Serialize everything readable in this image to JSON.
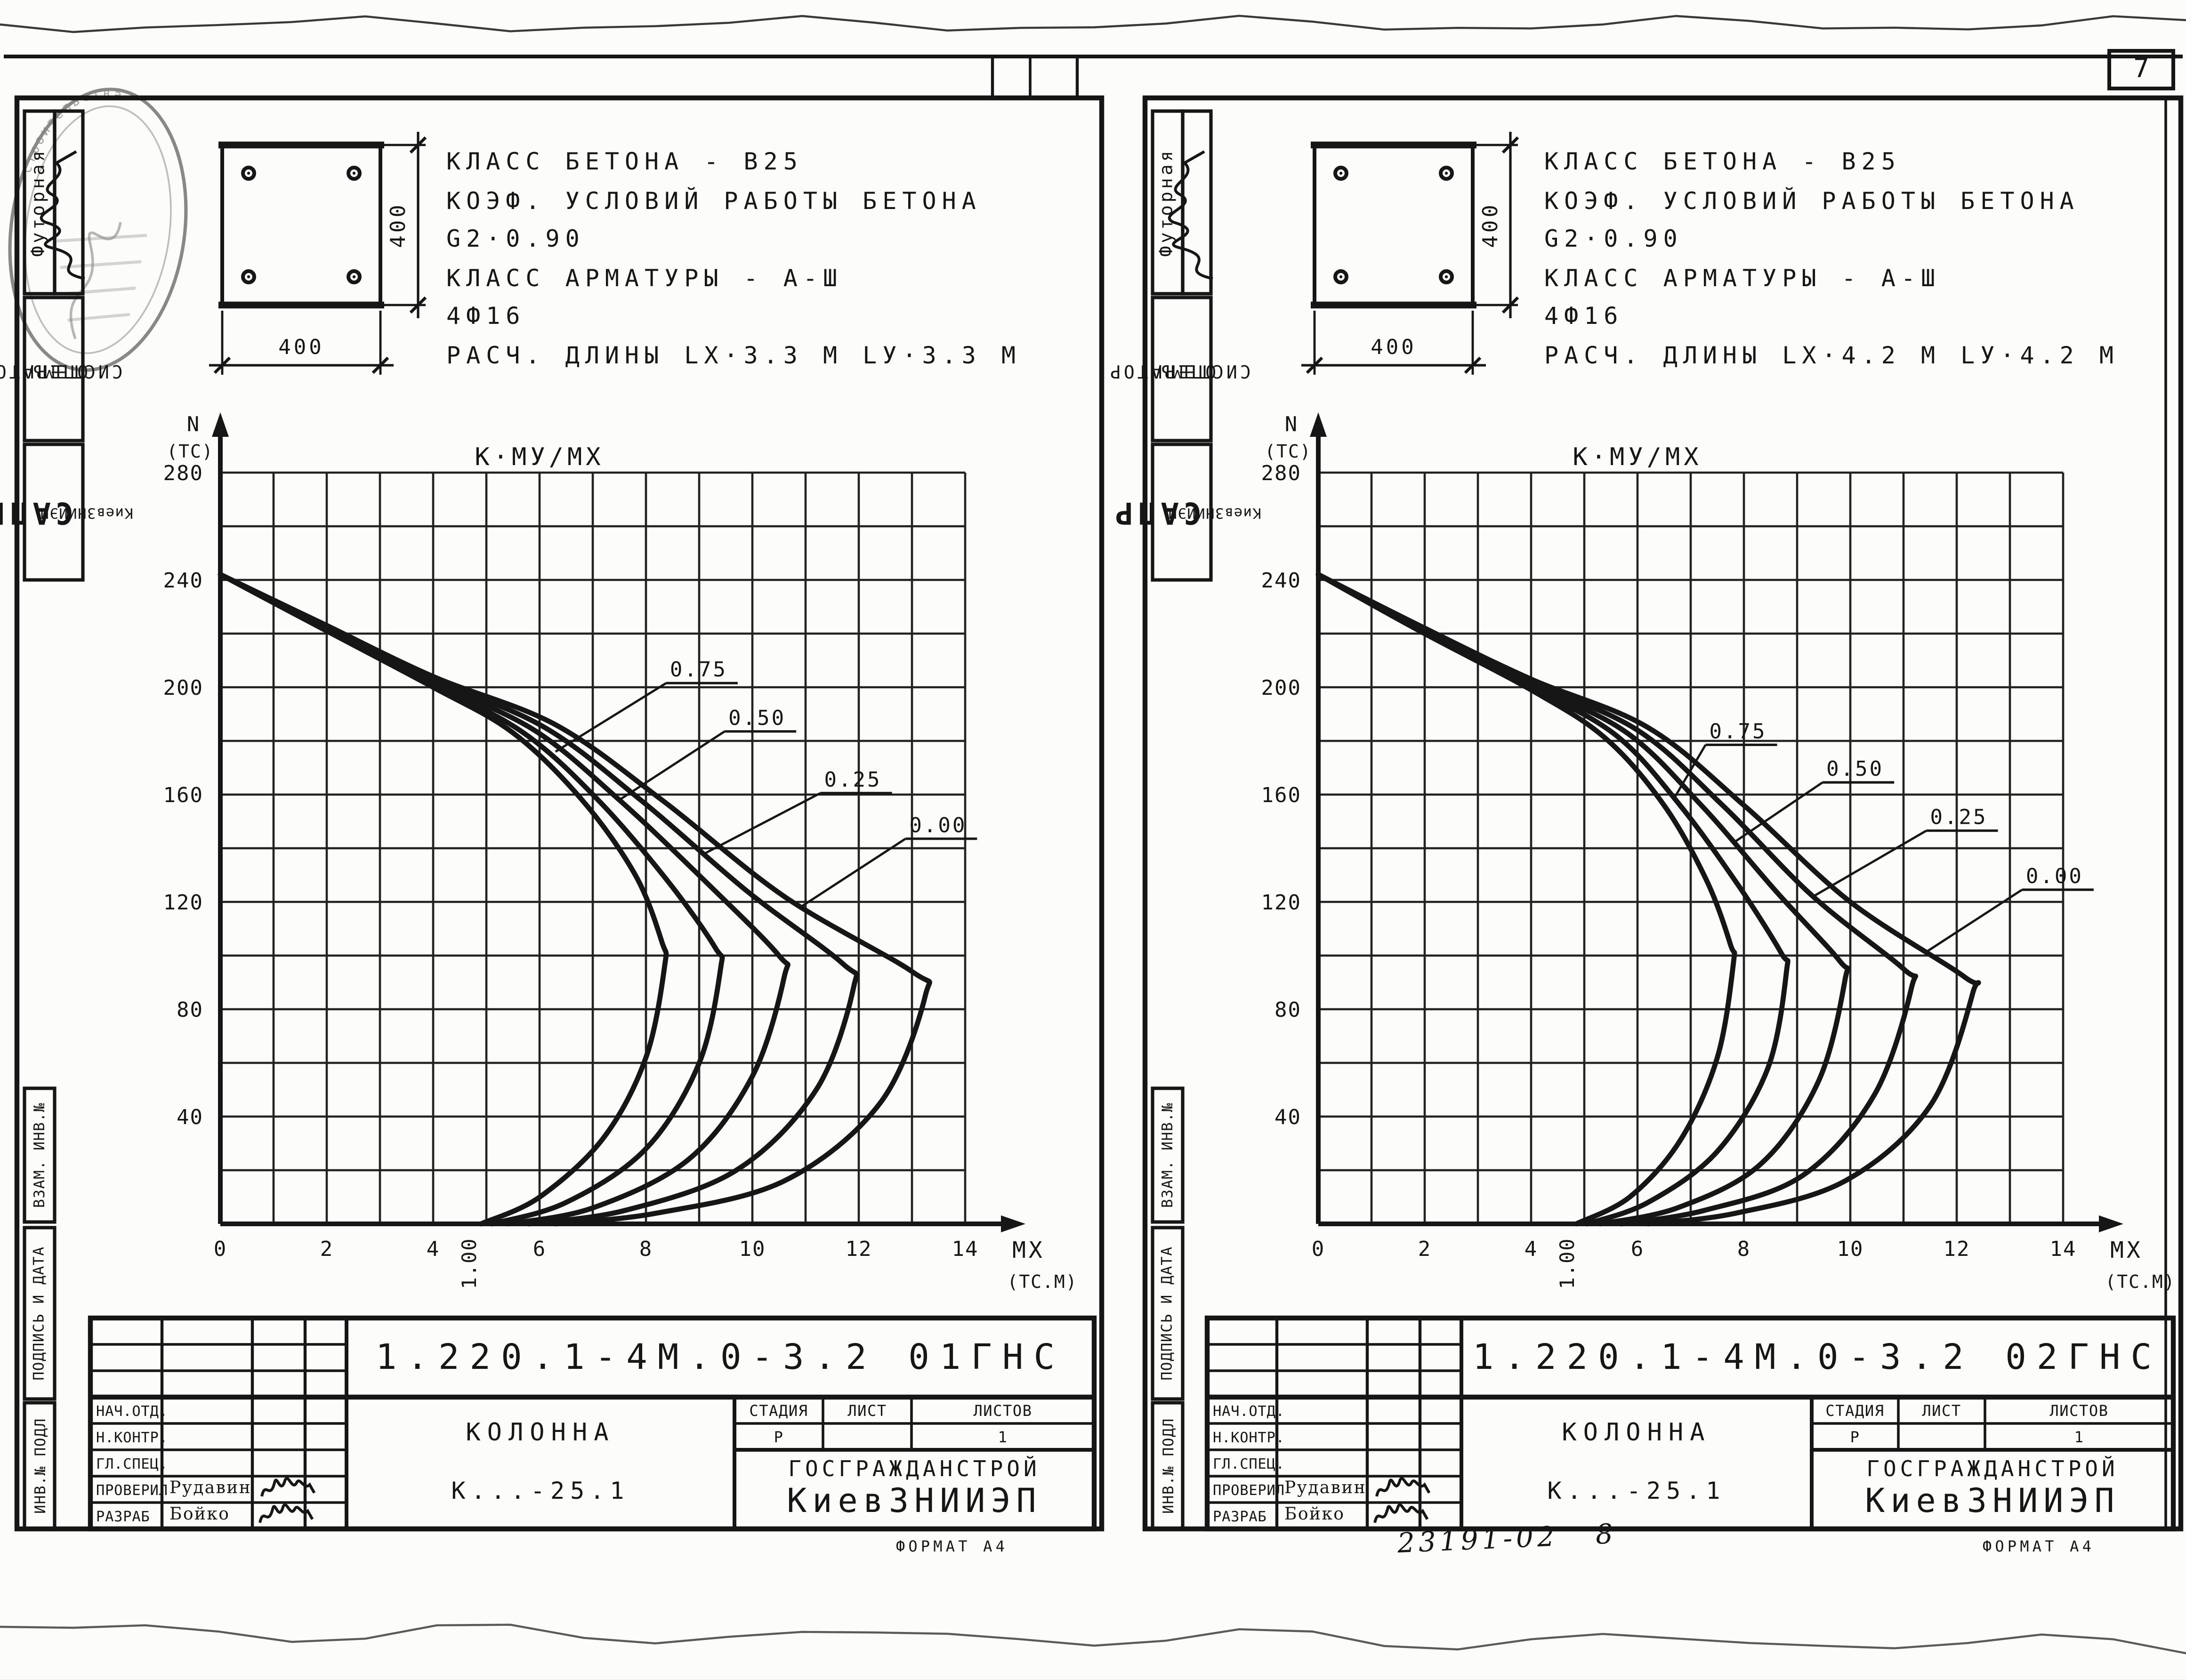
{
  "page": {
    "sheet_number": "7",
    "format_note": "ФОРМАТ А4",
    "handwritten_code": "23191-02",
    "handwritten_num": "8",
    "ink_color": "#161616",
    "paper_color": "#fcfcfa"
  },
  "stamp": {
    "arc_text": "строительства"
  },
  "sidebar": {
    "upper": [
      {
        "label": "Футорная"
      },
      {
        "label": "ОПЕРАТОР",
        "label2": "СИСТЕМЫ"
      },
      {
        "label": "САПР",
        "label2": "КиевЗНИИЭП"
      }
    ],
    "lower": [
      "ВЗАМ. ИНВ.№",
      "ПОДПИСЬ И ДАТА",
      "ИНВ.№ ПОДЛ"
    ]
  },
  "sheets": [
    {
      "side": "left",
      "specs": [
        "КЛАСС БЕТОНА - В25",
        "КОЭФ. УСЛОВИЙ РАБОТЫ БЕТОНА",
        "G2·0.90",
        "КЛАСС АРМАТУРЫ - А-Ш",
        "4Ф16",
        "РАСЧ. ДЛИНЫ  LX·3.3 М  LУ·3.3 М"
      ],
      "section": {
        "width_label": "400",
        "height_label": "400"
      },
      "chart_data": {
        "type": "line",
        "title": "К·МУ/МХ",
        "x_axis": {
          "label": "MX",
          "unit": "(ТС.М)",
          "min": 0,
          "max": 14,
          "ticks": [
            0,
            2,
            4,
            6,
            8,
            10,
            12,
            14
          ],
          "grid_step": 1
        },
        "y_axis": {
          "label": "N",
          "unit": "(TC)",
          "min": 0,
          "max": 280,
          "ticks": [
            40,
            80,
            120,
            160,
            200,
            240,
            280
          ],
          "grid_step": 20
        },
        "annotation": {
          "text": "1.00",
          "x": 4.7
        },
        "series": [
          {
            "k": "1.00",
            "labeled": false,
            "points": [
              [
                0,
                242
              ],
              [
                2,
                221
              ],
              [
                4,
                200
              ],
              [
                5.5,
                183
              ],
              [
                6.8,
                158
              ],
              [
                7.8,
                130
              ],
              [
                8.3,
                105
              ],
              [
                8.35,
                96
              ],
              [
                8.0,
                62
              ],
              [
                7.2,
                32
              ],
              [
                6.0,
                10
              ],
              [
                4.9,
                0
              ]
            ]
          },
          {
            "k": "0.75",
            "labeled": true,
            "label_at": [
              8.45,
              204
            ],
            "leader_to": [
              6.3,
              176
            ],
            "points": [
              [
                0,
                242
              ],
              [
                2,
                221
              ],
              [
                4,
                201
              ],
              [
                5.7,
                183
              ],
              [
                7.1,
                158
              ],
              [
                8.4,
                128
              ],
              [
                9.3,
                103
              ],
              [
                9.4,
                95
              ],
              [
                9.0,
                60
              ],
              [
                8.0,
                28
              ],
              [
                6.5,
                8
              ],
              [
                5.1,
                0
              ]
            ]
          },
          {
            "k": "0.50",
            "labeled": true,
            "label_at": [
              9.55,
              186
            ],
            "leader_to": [
              7.5,
              158
            ],
            "points": [
              [
                0,
                242
              ],
              [
                2,
                222
              ],
              [
                4,
                202
              ],
              [
                5.9,
                184
              ],
              [
                7.5,
                158
              ],
              [
                9.2,
                126
              ],
              [
                10.5,
                100
              ],
              [
                10.6,
                92
              ],
              [
                10.0,
                55
              ],
              [
                8.8,
                24
              ],
              [
                7.0,
                6
              ],
              [
                5.4,
                0
              ]
            ]
          },
          {
            "k": "0.25",
            "labeled": true,
            "label_at": [
              11.35,
              163
            ],
            "leader_to": [
              9.1,
              138
            ],
            "points": [
              [
                0,
                242
              ],
              [
                2,
                222
              ],
              [
                4,
                203
              ],
              [
                6.1,
                185
              ],
              [
                7.9,
                158
              ],
              [
                9.9,
                124
              ],
              [
                11.7,
                97
              ],
              [
                11.9,
                88
              ],
              [
                11.2,
                50
              ],
              [
                9.7,
                20
              ],
              [
                7.6,
                5
              ],
              [
                5.8,
                0
              ]
            ]
          },
          {
            "k": "0.00",
            "labeled": true,
            "label_at": [
              12.95,
              146
            ],
            "leader_to": [
              10.9,
              118
            ],
            "points": [
              [
                0,
                242
              ],
              [
                2,
                223
              ],
              [
                4,
                204
              ],
              [
                6.3,
                186
              ],
              [
                8.3,
                158
              ],
              [
                10.6,
                122
              ],
              [
                13.0,
                94
              ],
              [
                13.25,
                85
              ],
              [
                12.4,
                45
              ],
              [
                10.6,
                16
              ],
              [
                8.2,
                4
              ],
              [
                6.3,
                0
              ]
            ]
          }
        ]
      },
      "title_block": {
        "doc_number": "1.220.1-4М.0-3.2 01ГНС",
        "rows": [
          {
            "role": "НАЧ.ОТД.",
            "name": ""
          },
          {
            "role": "Н.КОНТР.",
            "name": ""
          },
          {
            "role": "ГЛ.СПЕЦ.",
            "name": ""
          },
          {
            "role": "ПРОВЕРИЛ",
            "name": "Рудавин"
          },
          {
            "role": "РАЗРАБ",
            "name": "Бойко"
          }
        ],
        "product": "КОЛОННА",
        "product_code": "К...-25.1",
        "stage_cols": [
          "СТАДИЯ",
          "ЛИСТ",
          "ЛИСТОВ"
        ],
        "stage_vals": [
          "Р",
          "",
          "1"
        ],
        "org1": "ГОСГРАЖДАНСТРОЙ",
        "org2": "КиевЗНИИЭП"
      }
    },
    {
      "side": "right",
      "specs": [
        "КЛАСС БЕТОНА - В25",
        "КОЭФ. УСЛОВИЙ РАБОТЫ БЕТОНА",
        "G2·0.90",
        "КЛАСС АРМАТУРЫ - А-Ш",
        "4Ф16",
        "РАСЧ. ДЛИНЫ  LX·4.2 М  LУ·4.2 М"
      ],
      "section": {
        "width_label": "400",
        "height_label": "400"
      },
      "chart_data": {
        "type": "line",
        "title": "К·МУ/МХ",
        "x_axis": {
          "label": "MX",
          "unit": "(ТС.М)",
          "min": 0,
          "max": 14,
          "ticks": [
            0,
            2,
            4,
            6,
            8,
            10,
            12,
            14
          ],
          "grid_step": 1
        },
        "y_axis": {
          "label": "N",
          "unit": "(TC)",
          "min": 0,
          "max": 280,
          "ticks": [
            40,
            80,
            120,
            160,
            200,
            240,
            280
          ],
          "grid_step": 20
        },
        "annotation": {
          "text": "1.00",
          "x": 4.7
        },
        "series": [
          {
            "k": "1.00",
            "labeled": false,
            "points": [
              [
                0,
                242
              ],
              [
                2,
                220
              ],
              [
                4,
                199
              ],
              [
                5.4,
                181
              ],
              [
                6.5,
                156
              ],
              [
                7.3,
                128
              ],
              [
                7.75,
                104
              ],
              [
                7.8,
                97
              ],
              [
                7.5,
                62
              ],
              [
                6.8,
                31
              ],
              [
                5.85,
                10
              ],
              [
                4.85,
                0
              ]
            ]
          },
          {
            "k": "0.75",
            "labeled": true,
            "label_at": [
              7.35,
              181
            ],
            "leader_to": [
              6.7,
              159
            ],
            "points": [
              [
                0,
                242
              ],
              [
                2,
                220
              ],
              [
                4,
                200
              ],
              [
                5.6,
                182
              ],
              [
                6.8,
                156
              ],
              [
                7.9,
                126
              ],
              [
                8.7,
                101
              ],
              [
                8.8,
                94
              ],
              [
                8.45,
                58
              ],
              [
                7.5,
                27
              ],
              [
                6.2,
                8
              ],
              [
                5.05,
                0
              ]
            ]
          },
          {
            "k": "0.50",
            "labeled": true,
            "label_at": [
              9.55,
              167
            ],
            "leader_to": [
              7.8,
              142
            ],
            "points": [
              [
                0,
                242
              ],
              [
                2,
                221
              ],
              [
                4,
                201
              ],
              [
                5.8,
                183
              ],
              [
                7.2,
                156
              ],
              [
                8.6,
                124
              ],
              [
                9.8,
                98
              ],
              [
                9.9,
                91
              ],
              [
                9.4,
                53
              ],
              [
                8.3,
                22
              ],
              [
                6.75,
                6
              ],
              [
                5.3,
                0
              ]
            ]
          },
          {
            "k": "0.25",
            "labeled": true,
            "label_at": [
              11.5,
              149
            ],
            "leader_to": [
              9.3,
              122
            ],
            "points": [
              [
                0,
                242
              ],
              [
                2,
                221
              ],
              [
                4,
                202
              ],
              [
                6.0,
                184
              ],
              [
                7.6,
                156
              ],
              [
                9.3,
                122
              ],
              [
                11.0,
                95
              ],
              [
                11.15,
                88
              ],
              [
                10.45,
                48
              ],
              [
                9.1,
                18
              ],
              [
                7.25,
                5
              ],
              [
                5.7,
                0
              ]
            ]
          },
          {
            "k": "0.00",
            "labeled": true,
            "label_at": [
              13.3,
              127
            ],
            "leader_to": [
              11.4,
              101
            ],
            "points": [
              [
                0,
                242
              ],
              [
                2,
                222
              ],
              [
                4,
                203
              ],
              [
                6.2,
                185
              ],
              [
                8.0,
                156
              ],
              [
                10.0,
                120
              ],
              [
                12.15,
                92
              ],
              [
                12.3,
                86
              ],
              [
                11.5,
                44
              ],
              [
                9.9,
                16
              ],
              [
                7.85,
                4
              ],
              [
                6.2,
                0
              ]
            ]
          }
        ]
      },
      "title_block": {
        "doc_number": "1.220.1-4М.0-3.2 02ГНС",
        "rows": [
          {
            "role": "НАЧ.ОТД.",
            "name": ""
          },
          {
            "role": "Н.КОНТР.",
            "name": ""
          },
          {
            "role": "ГЛ.СПЕЦ.",
            "name": ""
          },
          {
            "role": "ПРОВЕРИЛ",
            "name": "Рудавин"
          },
          {
            "role": "РАЗРАБ",
            "name": "Бойко"
          }
        ],
        "product": "КОЛОННА",
        "product_code": "К...-25.1",
        "stage_cols": [
          "СТАДИЯ",
          "ЛИСТ",
          "ЛИСТОВ"
        ],
        "stage_vals": [
          "Р",
          "",
          "1"
        ],
        "org1": "ГОСГРАЖДАНСТРОЙ",
        "org2": "КиевЗНИИЭП"
      }
    }
  ]
}
